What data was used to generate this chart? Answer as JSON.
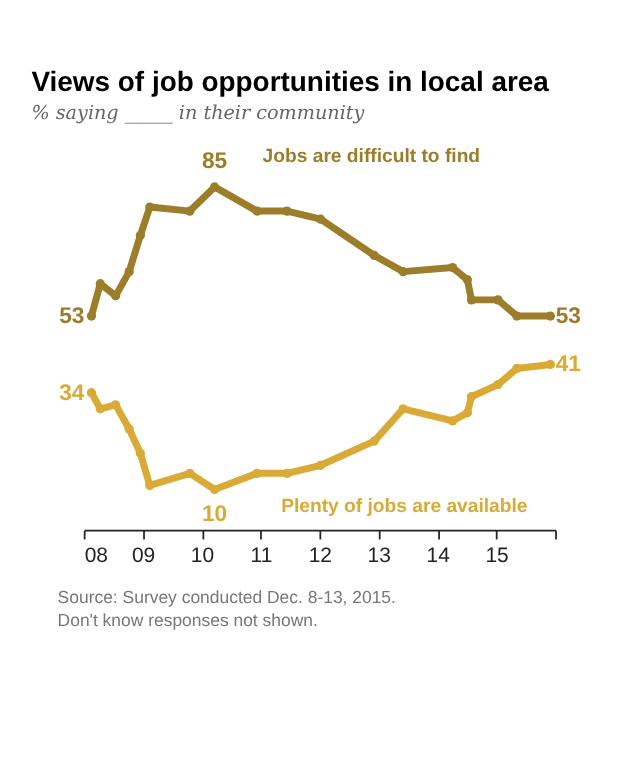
{
  "chart_data": {
    "type": "line",
    "title": "Views of job opportunities in local area",
    "subtitle": "% saying _____ in their community",
    "x": [
      2008.13,
      2008.28,
      2008.54,
      2008.77,
      2008.96,
      2009.12,
      2009.8,
      2010.22,
      2010.94,
      2011.45,
      2012.02,
      2012.93,
      2013.42,
      2014.26,
      2014.51,
      2014.58,
      2015.03,
      2015.35,
      2015.92
    ],
    "series": [
      {
        "name": "Jobs are difficult to find",
        "color": "#9c7d2a",
        "values": [
          53,
          61,
          58,
          64,
          73,
          80,
          79,
          85,
          79,
          79,
          77,
          68,
          64,
          65,
          62,
          57,
          57,
          53,
          53
        ],
        "value_labels": [
          "53",
          null,
          null,
          null,
          null,
          null,
          null,
          "85",
          null,
          null,
          null,
          null,
          null,
          null,
          null,
          null,
          null,
          null,
          "53"
        ]
      },
      {
        "name": "Plenty of jobs are available",
        "color": "#d9aa35",
        "values": [
          34,
          30,
          31,
          25,
          19,
          11,
          14,
          10,
          14,
          14,
          16,
          22,
          30,
          27,
          29,
          33,
          36,
          40,
          41
        ],
        "value_labels": [
          "34",
          null,
          null,
          null,
          null,
          null,
          null,
          "10",
          null,
          null,
          null,
          null,
          null,
          null,
          null,
          null,
          null,
          null,
          "41"
        ]
      }
    ],
    "xlim": [
      2008,
      2016
    ],
    "xticks": [
      {
        "value": 2008,
        "label": "08"
      },
      {
        "value": 2009,
        "label": "09"
      },
      {
        "value": 2010,
        "label": "10"
      },
      {
        "value": 2011,
        "label": "11"
      },
      {
        "value": 2012,
        "label": "12"
      },
      {
        "value": 2013,
        "label": "13"
      },
      {
        "value": 2014,
        "label": "14"
      },
      {
        "value": 2015,
        "label": "15"
      },
      {
        "value": 2016,
        "label": null
      }
    ],
    "tick_labels": "x",
    "marker": "circle",
    "line_style": "solid",
    "annotations": [
      "Source: Survey conducted Dec. 8-13, 2015.",
      "Don't know responses not shown."
    ]
  }
}
